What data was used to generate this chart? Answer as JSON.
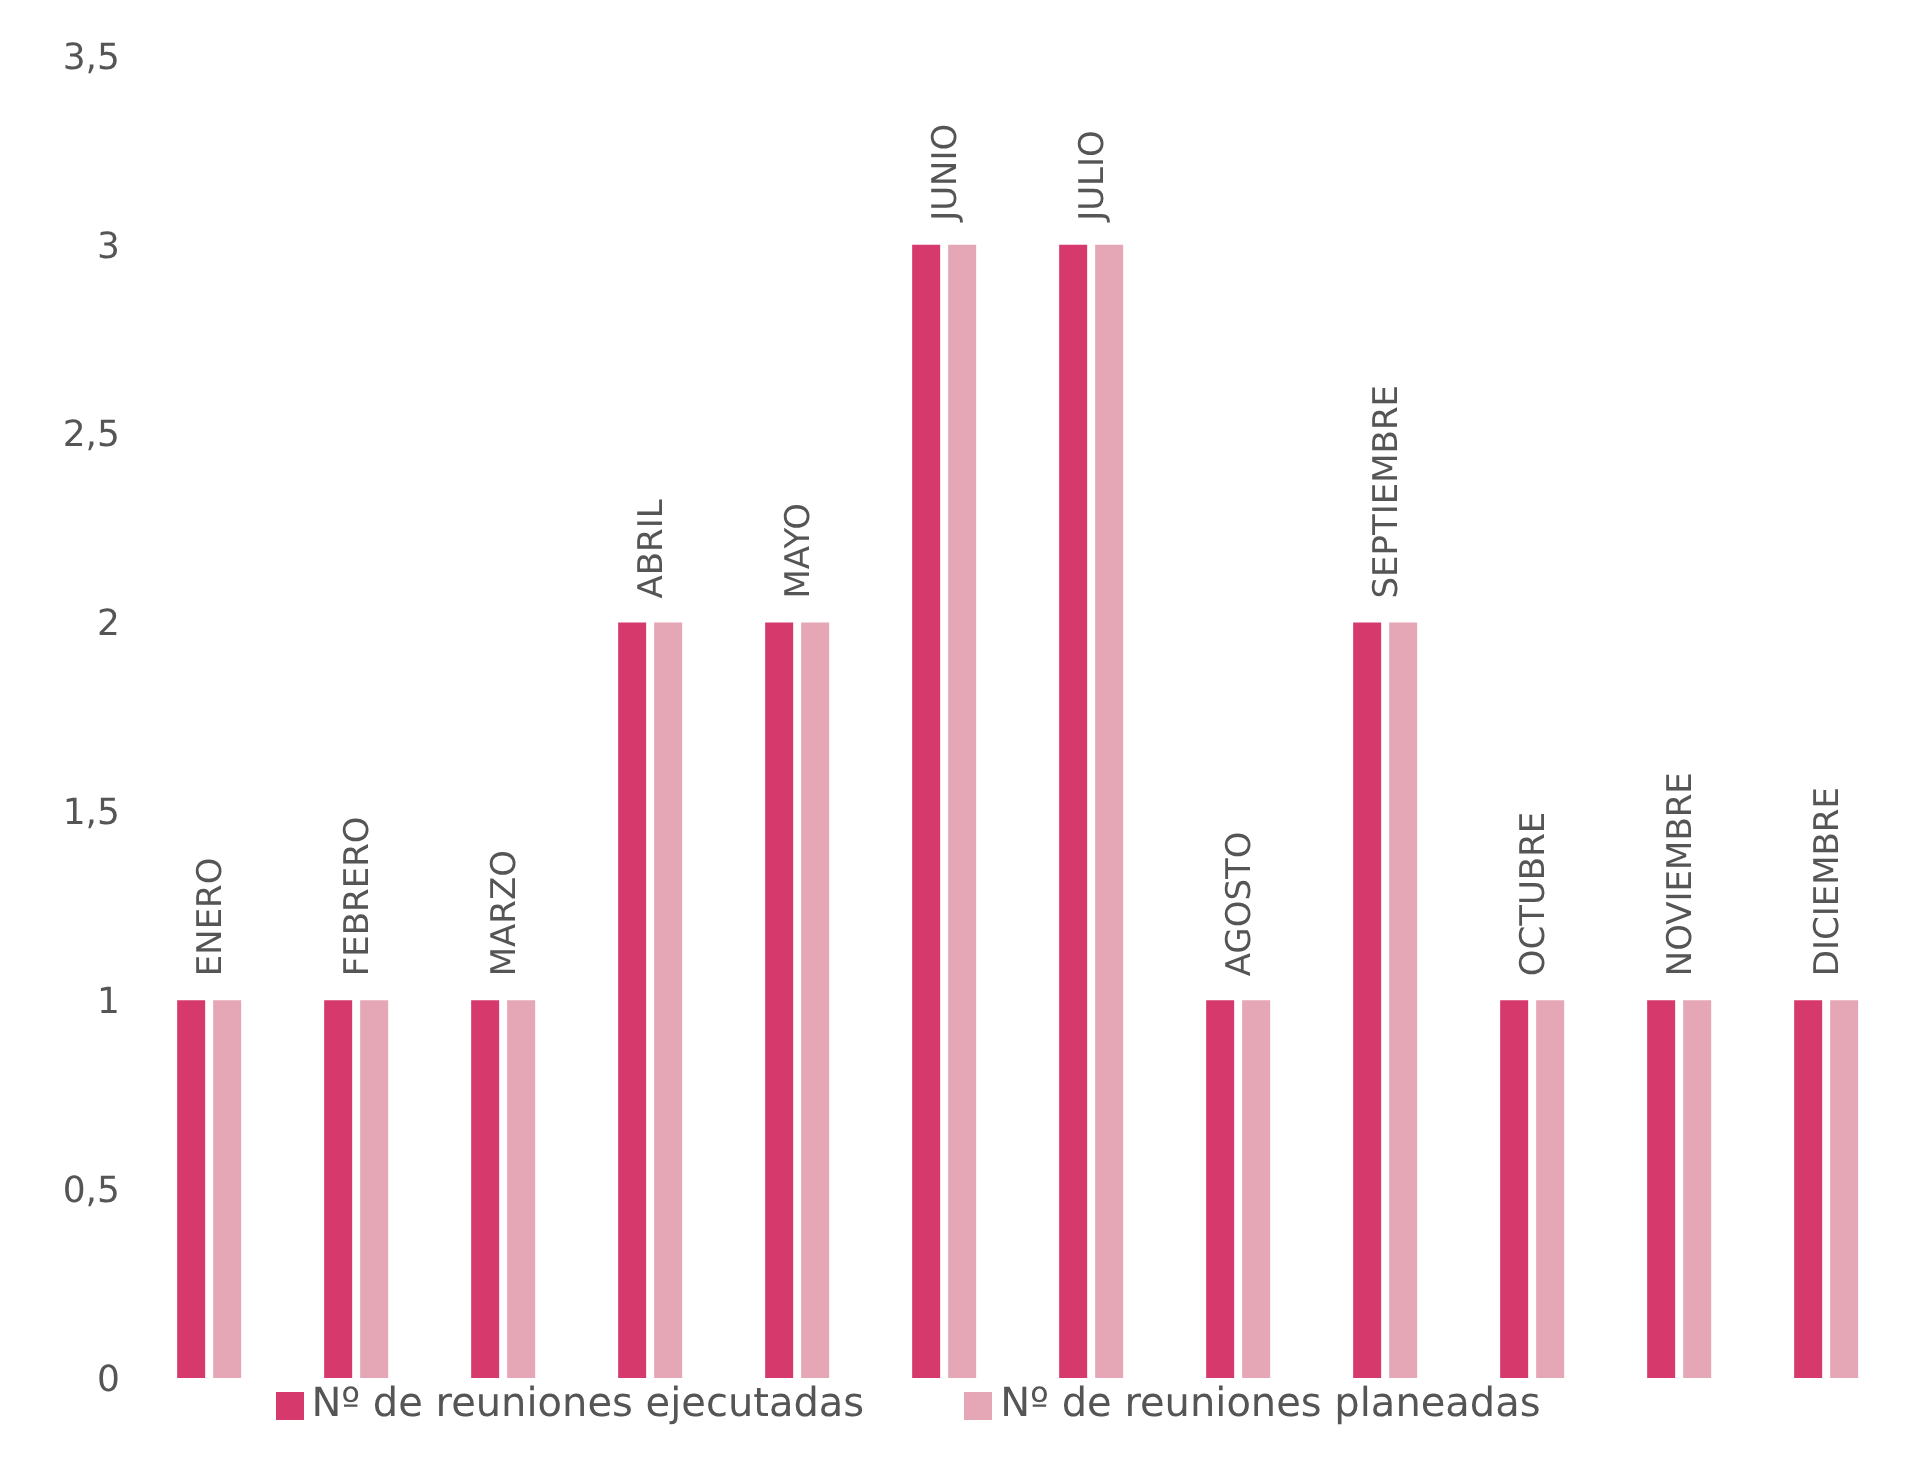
{
  "chart_data": {
    "type": "bar",
    "categories": [
      "ENERO",
      "FEBRERO",
      "MARZO",
      "ABRIL",
      "MAYO",
      "JUNIO",
      "JULIO",
      "AGOSTO",
      "SEPTIEMBRE",
      "OCTUBRE",
      "NOVIEMBRE",
      "DICIEMBRE"
    ],
    "series": [
      {
        "name": "Nº de reuniones ejecutadas",
        "color": "#d6396c",
        "values": [
          1,
          1,
          1,
          2,
          2,
          3,
          3,
          1,
          2,
          1,
          1,
          1
        ]
      },
      {
        "name": "Nº de reuniones planeadas",
        "color": "#e5a6b6",
        "values": [
          1,
          1,
          1,
          2,
          2,
          3,
          3,
          1,
          2,
          1,
          1,
          1
        ]
      }
    ],
    "ylim": [
      0,
      3.5
    ],
    "yticks": [
      {
        "value": 0,
        "label": "0"
      },
      {
        "value": 0.5,
        "label": "0,5"
      },
      1,
      {
        "value": 1.5,
        "label": "1,5"
      },
      2,
      {
        "value": 2.5,
        "label": "2,5"
      },
      3,
      {
        "value": 3.5,
        "label": "3,5"
      }
    ],
    "grid": false,
    "legend": "bottom"
  }
}
